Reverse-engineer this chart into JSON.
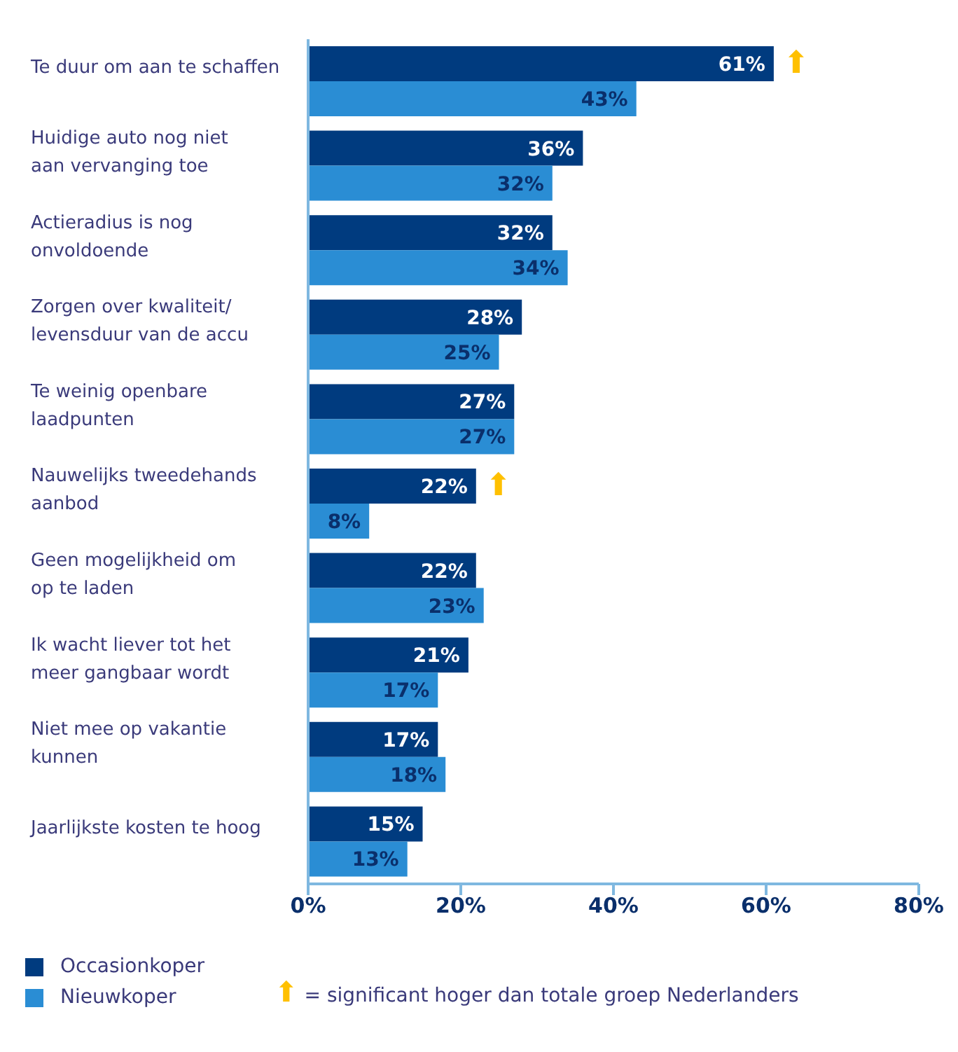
{
  "chart_data": {
    "type": "bar",
    "orientation": "horizontal",
    "categories": [
      "Te duur om aan te schaffen",
      "Huidige auto nog niet\naan vervanging toe",
      "Actieradius is nog\nonvoldoende",
      "Zorgen over kwaliteit/\nlevensduur van de accu",
      "Te weinig openbare\nlaadpunten",
      "Nauwelijks tweedehands\naanbod",
      "Geen mogelijkheid om\nop te laden",
      "Ik wacht liever tot het\nmeer gangbaar wordt",
      "Niet mee op vakantie\nkunnen",
      "Jaarlijkste kosten te hoog"
    ],
    "series": [
      {
        "name": "Occasionkoper",
        "color": "#003b7f",
        "values": [
          61,
          36,
          32,
          28,
          27,
          22,
          22,
          21,
          17,
          15
        ],
        "value_labels": [
          "61%",
          "36%",
          "32%",
          "28%",
          "27%",
          "22%",
          "22%",
          "21%",
          "17%",
          "15%"
        ]
      },
      {
        "name": "Nieuwkoper",
        "color": "#2a8dd4",
        "values": [
          43,
          32,
          34,
          25,
          27,
          8,
          23,
          17,
          18,
          13
        ],
        "value_labels": [
          "43%",
          "32%",
          "34%",
          "25%",
          "27%",
          "8%",
          "23%",
          "17%",
          "18%",
          "13%"
        ]
      }
    ],
    "xlim": [
      0,
      80
    ],
    "xticks": [
      {
        "value": 0,
        "label": "0%"
      },
      {
        "value": 20,
        "label": "20%"
      },
      {
        "value": 40,
        "label": "40%"
      },
      {
        "value": 60,
        "label": "60%"
      },
      {
        "value": 80,
        "label": "80%"
      }
    ],
    "legend": "bottom left",
    "annotations": [
      {
        "text": "⬆",
        "x": 61,
        "y": "Te duur om aan te schaffen"
      },
      {
        "text": "⬆",
        "x": 22,
        "y": "Nauwelijks tweedehands\naanbod"
      },
      "⬆ = significant hoger dan totale groep Nederlanders"
    ]
  }
}
